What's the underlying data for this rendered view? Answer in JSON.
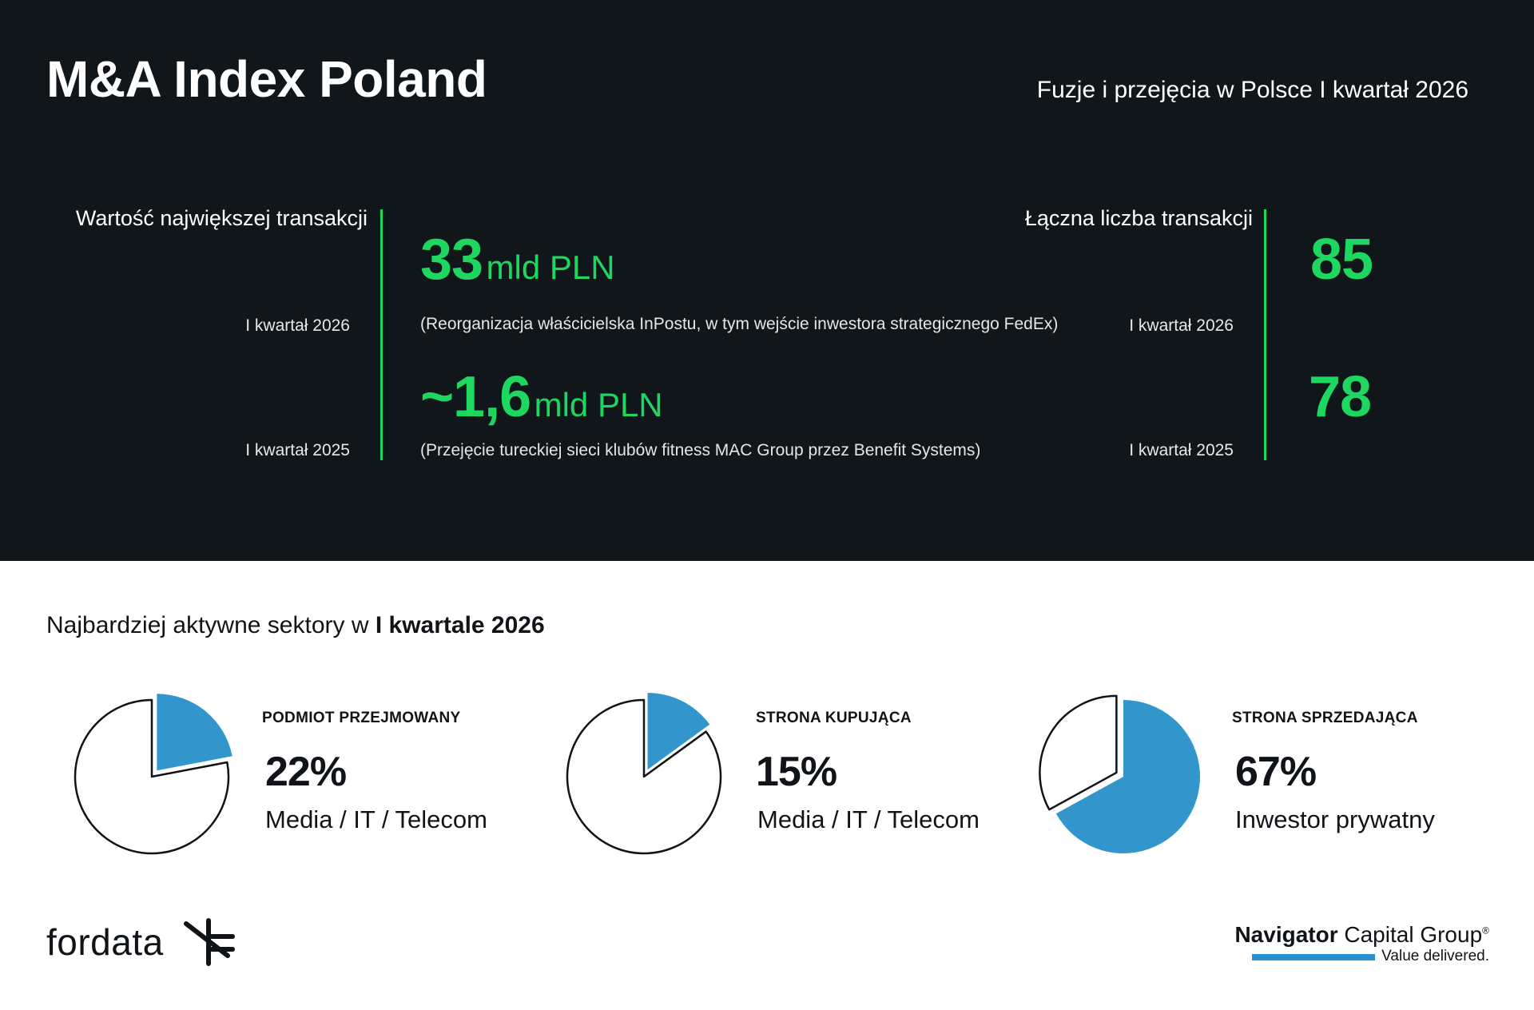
{
  "header": {
    "title": "M&A Index Poland",
    "subtitle": "Fuzje i przejęcia w Polsce I kwartał 2026"
  },
  "largest_deal": {
    "label": "Wartość największej transakcji",
    "rows": [
      {
        "period": "I kwartał 2026",
        "value": "33",
        "unit": "mld PLN",
        "note": "(Reorganizacja właścicielska InPostu, w tym wejście inwestora strategicznego FedEx)"
      },
      {
        "period": "I kwartał 2025",
        "value": "~1,6",
        "unit": "mld PLN",
        "note": "(Przejęcie tureckiej sieci klubów fitness MAC Group przez Benefit Systems)"
      }
    ]
  },
  "deal_count": {
    "label": "Łączna liczba transakcji",
    "rows": [
      {
        "period": "I kwartał 2026",
        "value": "85"
      },
      {
        "period": "I kwartał 2025",
        "value": "78"
      }
    ]
  },
  "sectors": {
    "title_prefix": "Najbardziej aktywne sektory w",
    "title_bold": "I kwartale 2026"
  },
  "chart_data": [
    {
      "type": "pie",
      "title": "PODMIOT PRZEJMOWANY",
      "percent_label": "22%",
      "category": "Media / IT / Telecom",
      "value": 22
    },
    {
      "type": "pie",
      "title": "STRONA KUPUJĄCA",
      "percent_label": "15%",
      "category": "Media / IT / Telecom",
      "value": 15
    },
    {
      "type": "pie",
      "title": "STRONA SPRZEDAJĄCA",
      "percent_label": "67%",
      "category": "Inwestor prywatny",
      "value": 67
    }
  ],
  "colors": {
    "accent_green": "#1ed760",
    "pie_blue": "#3296cd",
    "dark_bg": "#11161b"
  },
  "footer": {
    "left_logo": "fordata",
    "left_logo_icon": "fordata-mark-icon",
    "right_logo_bold": "Navigator",
    "right_logo_rest": "Capital Group",
    "right_logo_reg": "®",
    "right_tagline": "Value delivered."
  }
}
